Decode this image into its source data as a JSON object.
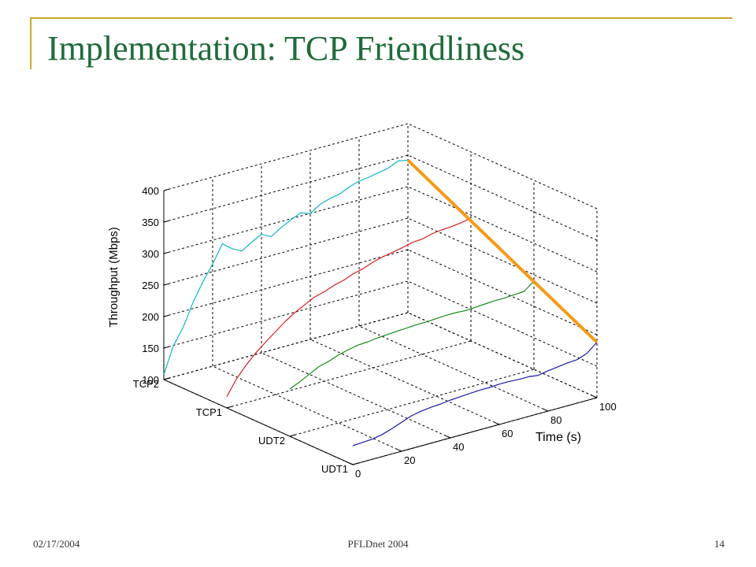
{
  "slide": {
    "title": "Implementation: TCP Friendliness",
    "footer_date": "02/17/2004",
    "footer_center": "PFLDnet 2004",
    "page_number": "14",
    "accent_color": "#c8a82a",
    "title_color": "#1f6b3a"
  },
  "chart_data": {
    "type": "line",
    "projection": "3d-ribbons",
    "zlabel": "Throughput (Mbps)",
    "xlabel": "Time (s)",
    "zlim": [
      100,
      400
    ],
    "xlim": [
      0,
      100
    ],
    "z_ticks": [
      "100",
      "150",
      "200",
      "250",
      "300",
      "350",
      "400"
    ],
    "x_ticks": [
      "0",
      "20",
      "40",
      "60",
      "80",
      "100"
    ],
    "categories": [
      "UDT1",
      "UDT2",
      "TCP1",
      "TCP2"
    ],
    "grid": true,
    "series": [
      {
        "name": "TCP2",
        "color": "#0fb5c8",
        "x": [
          0,
          4,
          8,
          12,
          16,
          20,
          24,
          28,
          32,
          36,
          40,
          44,
          48,
          52,
          56,
          60,
          64,
          68,
          72,
          76,
          80,
          84,
          88,
          92,
          96,
          100
        ],
        "values": [
          108,
          150,
          175,
          210,
          238,
          262,
          290,
          278,
          270,
          280,
          288,
          280,
          290,
          298,
          305,
          300,
          310,
          315,
          318,
          325,
          330,
          332,
          335,
          338,
          345,
          342
        ]
      },
      {
        "name": "TCP1",
        "color": "#d42020",
        "x": [
          0,
          4,
          8,
          12,
          16,
          20,
          24,
          28,
          32,
          36,
          40,
          44,
          48,
          52,
          56,
          60,
          64,
          68,
          72,
          76,
          80,
          84,
          88,
          92,
          96,
          100
        ],
        "values": [
          118,
          142,
          160,
          175,
          188,
          200,
          212,
          222,
          230,
          238,
          242,
          248,
          252,
          258,
          262,
          268,
          272,
          275,
          278,
          282,
          283,
          287,
          289,
          290,
          292,
          295
        ]
      },
      {
        "name": "UDT2",
        "color": "#1a8a1a",
        "x": [
          0,
          4,
          8,
          12,
          16,
          20,
          24,
          28,
          32,
          36,
          40,
          44,
          48,
          52,
          56,
          60,
          64,
          68,
          72,
          76,
          80,
          84,
          88,
          92,
          96,
          100
        ],
        "values": [
          175,
          182,
          190,
          198,
          202,
          208,
          212,
          215,
          216,
          218,
          219,
          220,
          221,
          222,
          222,
          223,
          224,
          224,
          223,
          224,
          225,
          226,
          226,
          227,
          228,
          240
        ]
      },
      {
        "name": "UDT1",
        "color": "#1a1aa8",
        "x": [
          0,
          4,
          8,
          12,
          16,
          20,
          24,
          28,
          32,
          36,
          40,
          44,
          48,
          52,
          56,
          60,
          64,
          68,
          72,
          76,
          80,
          84,
          88,
          92,
          96,
          100
        ],
        "values": [
          130,
          131,
          132,
          135,
          140,
          146,
          152,
          155,
          157,
          158,
          160,
          161,
          162,
          163,
          163,
          164,
          164,
          163,
          163,
          161,
          164,
          166,
          168,
          169,
          175,
          188
        ]
      }
    ],
    "annotation": {
      "type": "line",
      "color": "#f59a17"
    }
  }
}
